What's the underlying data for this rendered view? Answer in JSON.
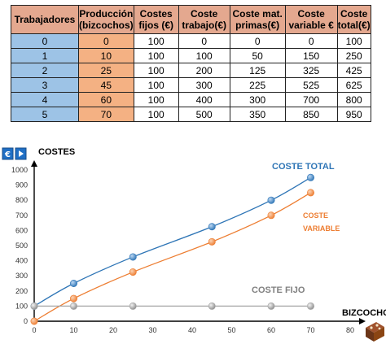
{
  "table": {
    "headers": [
      [
        "Trabajadores"
      ],
      [
        "Producción",
        "(bizcochos)"
      ],
      [
        "Costes",
        "fijos (€)"
      ],
      [
        "Coste",
        "trabajo(€)"
      ],
      [
        "Coste mat.",
        "primas(€)"
      ],
      [
        "Coste",
        "variable €"
      ],
      [
        "Coste",
        "total(€)"
      ]
    ],
    "rows": [
      [
        "0",
        "0",
        "100",
        "0",
        "0",
        "0",
        "100"
      ],
      [
        "1",
        "10",
        "100",
        "100",
        "50",
        "150",
        "250"
      ],
      [
        "2",
        "25",
        "100",
        "200",
        "125",
        "325",
        "425"
      ],
      [
        "3",
        "45",
        "100",
        "300",
        "225",
        "525",
        "625"
      ],
      [
        "4",
        "60",
        "100",
        "400",
        "300",
        "700",
        "800"
      ],
      [
        "5",
        "70",
        "100",
        "500",
        "350",
        "850",
        "950"
      ]
    ]
  },
  "colors": {
    "header": "#e4a88f",
    "trabajadores_col": "#9dc3e6",
    "produccion_col": "#f4b183",
    "coste_total": "#2e75b6",
    "coste_variable": "#ed7d31",
    "coste_fijo": "#a6a6a6"
  },
  "icons": [
    "euro-icon",
    "next-arrow-icon",
    "cake-icon"
  ],
  "chart_data": {
    "type": "line",
    "ylabel": "COSTES",
    "xlabel": "BIZCOCHOS",
    "xlim": [
      0,
      80
    ],
    "ylim": [
      0,
      1000
    ],
    "x_ticks": [
      0,
      10,
      20,
      30,
      40,
      50,
      60,
      70,
      80
    ],
    "y_ticks": [
      0,
      100,
      200,
      300,
      400,
      500,
      600,
      700,
      800,
      900,
      1000
    ],
    "grid": false,
    "x": [
      0,
      10,
      25,
      45,
      60,
      70
    ],
    "series": [
      {
        "name": "COSTE TOTAL",
        "values": [
          100,
          250,
          425,
          625,
          800,
          950
        ]
      },
      {
        "name": "COSTE VARIABLE",
        "values": [
          0,
          150,
          325,
          525,
          700,
          850
        ]
      },
      {
        "name": "COSTE FIJO",
        "values": [
          100,
          100,
          100,
          100,
          100,
          100
        ]
      }
    ],
    "series_labels": {
      "total": "COSTE TOTAL",
      "variable_line1": "COSTE",
      "variable_line2": "VARIABLE",
      "fijo": "COSTE FIJO"
    }
  }
}
